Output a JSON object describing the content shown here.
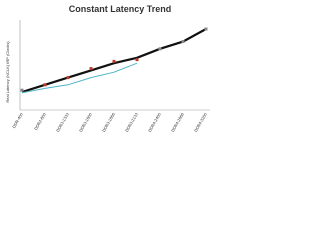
{
  "chart_data": {
    "type": "line",
    "title": "Constant Latency Trend",
    "y_label": "Real Latency (NCLK) tRP (Clocks)",
    "categories": [
      "DDR-400",
      "DDR2-800",
      "DDR3-1333",
      "DDR3-1600",
      "DDR3-1866",
      "DDR3-2133",
      "DDR4-2400",
      "DDR4-2666",
      "DDR4-3200"
    ],
    "ylim": [
      0,
      25
    ],
    "series": [
      {
        "color": "#111111",
        "values": [
          5,
          7,
          9,
          11,
          13,
          14.5,
          17,
          19,
          22.5
        ]
      },
      {
        "color": "#4fb3c9",
        "values": [
          4.8,
          6,
          7,
          9,
          10.5,
          13,
          null,
          null,
          null
        ]
      },
      {
        "color": "#c0392b",
        "markers_only": true,
        "values": [
          null,
          7,
          9,
          11.5,
          13.5,
          14,
          null,
          null,
          null
        ]
      },
      {
        "color": "#888888",
        "markers_only": true,
        "values": [
          5.5,
          null,
          null,
          null,
          null,
          null,
          17,
          19,
          22.5
        ]
      }
    ]
  }
}
